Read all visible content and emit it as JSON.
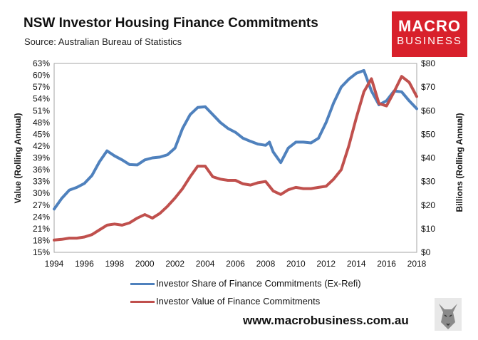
{
  "header": {
    "title": "NSW Investor Housing Finance Commitments",
    "subtitle": "Source: Australian Bureau of Statistics"
  },
  "logo": {
    "line1": "MACRO",
    "line2": "BUSINESS",
    "color": "#d8202b"
  },
  "website": "www.macrobusiness.com.au",
  "colors": {
    "share": "#4f81bd",
    "value": "#c0504d"
  },
  "chart_data": {
    "type": "line",
    "xlabel": "",
    "ylabel": "Value (Rolling Annual)",
    "y2label": "Billions (Rolling Annual)",
    "xlim": [
      1994,
      2018
    ],
    "xticks": [
      "1994",
      "1996",
      "1998",
      "2000",
      "2002",
      "2004",
      "2006",
      "2008",
      "2010",
      "2012",
      "2014",
      "2016",
      "2018"
    ],
    "ylim": [
      15,
      63
    ],
    "yticks": [
      "15%",
      "18%",
      "21%",
      "24%",
      "27%",
      "30%",
      "33%",
      "36%",
      "39%",
      "42%",
      "45%",
      "48%",
      "51%",
      "54%",
      "57%",
      "60%",
      "63%"
    ],
    "y2lim": [
      0,
      80
    ],
    "y2ticks": [
      "$0",
      "$10",
      "$20",
      "$30",
      "$40",
      "$50",
      "$60",
      "$70",
      "$80"
    ],
    "series": [
      {
        "name": "Investor Share of Finance Commitments (Ex-Refi)",
        "axis": "left",
        "x": [
          1994.0,
          1994.5,
          1995.0,
          1995.5,
          1996.0,
          1996.5,
          1997.0,
          1997.5,
          1998.0,
          1998.5,
          1999.0,
          1999.5,
          2000.0,
          2000.5,
          2001.0,
          2001.5,
          2002.0,
          2002.5,
          2003.0,
          2003.5,
          2004.0,
          2004.5,
          2005.0,
          2005.5,
          2006.0,
          2006.5,
          2007.0,
          2007.5,
          2008.0,
          2008.25,
          2008.5,
          2009.0,
          2009.5,
          2010.0,
          2010.5,
          2011.0,
          2011.5,
          2012.0,
          2012.5,
          2013.0,
          2013.5,
          2014.0,
          2014.5,
          2015.0,
          2015.5,
          2016.0,
          2016.5,
          2017.0,
          2017.5,
          2018.0
        ],
        "y": [
          26.0,
          28.7,
          30.8,
          31.5,
          32.5,
          34.5,
          38.0,
          40.8,
          39.5,
          38.5,
          37.3,
          37.2,
          38.5,
          39.0,
          39.2,
          39.8,
          41.5,
          46.5,
          50.0,
          51.8,
          52.0,
          50.0,
          48.0,
          46.5,
          45.5,
          44.0,
          43.2,
          42.5,
          42.2,
          43.0,
          40.5,
          37.8,
          41.5,
          43.0,
          43.0,
          42.8,
          44.0,
          48.0,
          53.0,
          57.0,
          59.0,
          60.5,
          61.2,
          56.0,
          52.5,
          53.5,
          56.0,
          55.8,
          53.5,
          51.5
        ]
      },
      {
        "name": "Investor Value of Finance Commitments",
        "axis": "right",
        "x": [
          1994.0,
          1994.5,
          1995.0,
          1995.5,
          1996.0,
          1996.5,
          1997.0,
          1997.5,
          1998.0,
          1998.5,
          1999.0,
          1999.5,
          2000.0,
          2000.5,
          2001.0,
          2001.5,
          2002.0,
          2002.5,
          2003.0,
          2003.5,
          2004.0,
          2004.5,
          2005.0,
          2005.5,
          2006.0,
          2006.5,
          2007.0,
          2007.5,
          2008.0,
          2008.5,
          2009.0,
          2009.5,
          2010.0,
          2010.5,
          2011.0,
          2011.5,
          2012.0,
          2012.5,
          2013.0,
          2013.5,
          2014.0,
          2014.5,
          2015.0,
          2015.5,
          2016.0,
          2016.5,
          2017.0,
          2017.5,
          2018.0
        ],
        "y": [
          5.2,
          5.5,
          6.0,
          6.0,
          6.5,
          7.5,
          9.5,
          11.5,
          12.0,
          11.5,
          12.5,
          14.5,
          16.0,
          14.5,
          16.5,
          19.5,
          23.0,
          27.0,
          32.0,
          36.5,
          36.5,
          32.0,
          31.0,
          30.5,
          30.5,
          29.0,
          28.5,
          29.5,
          30.0,
          26.0,
          24.5,
          26.5,
          27.5,
          27.0,
          27.0,
          27.5,
          28.0,
          31.0,
          35.0,
          45.0,
          57.0,
          68.0,
          73.5,
          63.0,
          62.0,
          68.0,
          74.5,
          72.0,
          66.0
        ]
      }
    ]
  }
}
